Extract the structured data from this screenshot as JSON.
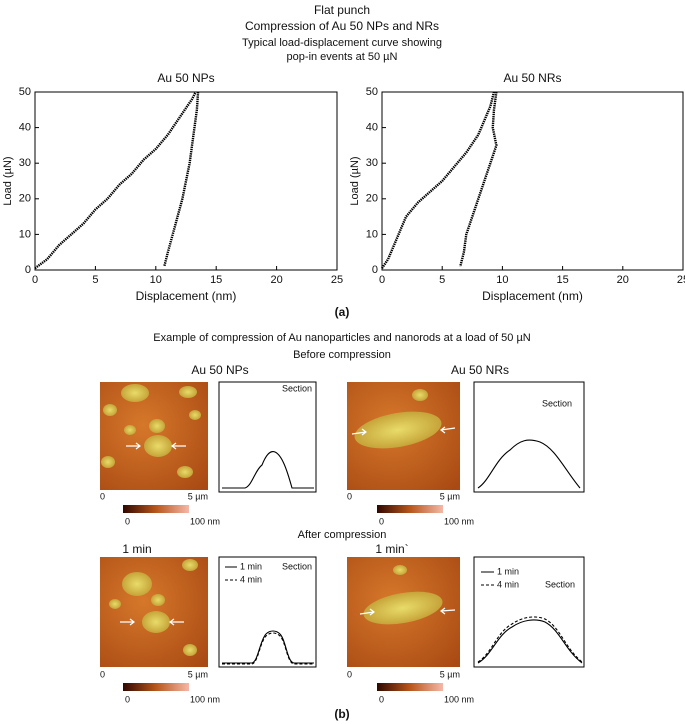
{
  "header": {
    "line1": "Flat punch",
    "line2": "Compression of Au 50 NPs and NRs",
    "subtitle1": "Typical load-displacement curve showing",
    "subtitle2": "pop-in events at 50 µN"
  },
  "chart_data": [
    {
      "type": "line",
      "title": "Au 50 NPs",
      "xlabel": "Displacement (nm)",
      "ylabel": "Load (µN)",
      "xlim": [
        0,
        25
      ],
      "ylim": [
        0,
        50
      ],
      "xticks": [
        0,
        5,
        10,
        15,
        20,
        25
      ],
      "yticks": [
        0,
        10,
        20,
        30,
        40,
        50
      ],
      "series": [
        {
          "color": "#000000",
          "x": [
            0,
            1,
            2,
            3,
            4,
            5,
            6,
            7,
            8,
            9,
            10,
            11,
            12,
            13,
            13.3
          ],
          "values": [
            0.5,
            3,
            7,
            10,
            13,
            17,
            20,
            24,
            27,
            31,
            34,
            38,
            43,
            48,
            50
          ]
        },
        {
          "color": "#000000",
          "x": [
            13.5,
            13.4,
            13.2,
            13,
            12.8,
            12.5,
            12.2,
            11.8,
            11.4,
            11,
            10.7
          ],
          "values": [
            50,
            45,
            40,
            35,
            30,
            25,
            20,
            15,
            10,
            5,
            1
          ]
        }
      ]
    },
    {
      "type": "line",
      "title": "Au 50 NRs",
      "xlabel": "Displacement (nm)",
      "ylabel": "Load (µN)",
      "xlim": [
        0,
        25
      ],
      "ylim": [
        0,
        50
      ],
      "xticks": [
        0,
        5,
        10,
        15,
        20,
        25
      ],
      "yticks": [
        0,
        10,
        20,
        30,
        40,
        50
      ],
      "series": [
        {
          "color": "#000000",
          "x": [
            0,
            0.5,
            1,
            1.5,
            2,
            3,
            4,
            5,
            6,
            7,
            8,
            8.5,
            9,
            9.3
          ],
          "values": [
            0.5,
            3,
            7,
            11,
            15,
            19,
            22,
            25,
            29,
            33,
            38,
            42,
            46,
            50
          ]
        },
        {
          "color": "#000000",
          "x": [
            9.5,
            9.3,
            9.2,
            9.5,
            9,
            8.5,
            8,
            7.5,
            7,
            6.8,
            6.5
          ],
          "values": [
            50,
            45,
            40,
            35,
            30,
            25,
            20,
            15,
            10,
            5,
            1
          ]
        }
      ]
    }
  ],
  "panel_a_label": "(a)",
  "panel_b": {
    "title": "Example of compression of Au nanoparticles and nanorods at a load of 50 µN",
    "before": "Before compression",
    "after": "After compression",
    "label": "(b)",
    "images": [
      {
        "title": "Au 50 NPs",
        "section": "Section",
        "scale_start": "0",
        "scale_end": "5 µm",
        "colorbar_min": "0",
        "colorbar_max": "100 nm"
      },
      {
        "title": "Au 50 NRs",
        "section": "Section",
        "scale_start": "0",
        "scale_end": "5 µm",
        "colorbar_min": "0",
        "colorbar_max": "100 nm"
      },
      {
        "title": "1 min",
        "section": "Section",
        "legend": [
          "1 min",
          "4 min"
        ],
        "scale_start": "0",
        "scale_end": "5 µm",
        "colorbar_min": "0",
        "colorbar_max": "100 nm"
      },
      {
        "title": "1 min`",
        "section": "Section",
        "legend": [
          "1 min",
          "4 min"
        ],
        "scale_start": "0",
        "scale_end": "5 µm",
        "colorbar_min": "0",
        "colorbar_max": "100 nm"
      }
    ]
  }
}
